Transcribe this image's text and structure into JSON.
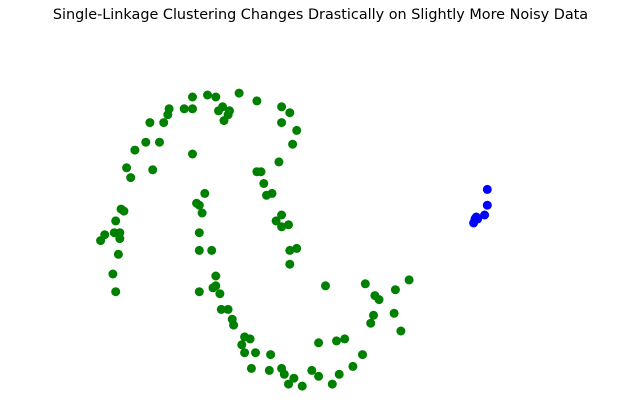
{
  "chart_data": {
    "type": "scatter",
    "title": "Single-Linkage Clustering Changes Drastically on Slightly More Noisy Data",
    "xlabel": "",
    "ylabel": "",
    "axes_visible": false,
    "grid": false,
    "legend": "none",
    "xlim": [
      -1.25,
      2.25
    ],
    "ylim": [
      -0.65,
      1.15
    ],
    "series": [
      {
        "color": "#008000",
        "points": [
          [
            -1.1,
            0.12
          ],
          [
            -1.07,
            0.15
          ],
          [
            -1.0,
            0.16
          ],
          [
            -0.96,
            0.16
          ],
          [
            -0.99,
            0.22
          ],
          [
            -0.93,
            0.27
          ],
          [
            -0.95,
            0.28
          ],
          [
            -0.96,
            0.13
          ],
          [
            -0.97,
            0.05
          ],
          [
            -1.01,
            -0.05
          ],
          [
            -0.99,
            -0.14
          ],
          [
            -0.88,
            0.44
          ],
          [
            -0.91,
            0.49
          ],
          [
            -0.85,
            0.58
          ],
          [
            -0.77,
            0.62
          ],
          [
            -0.74,
            0.72
          ],
          [
            -0.72,
            0.48
          ],
          [
            -0.67,
            0.62
          ],
          [
            -0.64,
            0.72
          ],
          [
            -0.61,
            0.76
          ],
          [
            -0.6,
            0.79
          ],
          [
            -0.49,
            0.79
          ],
          [
            -0.43,
            0.85
          ],
          [
            -0.43,
            0.79
          ],
          [
            -0.32,
            0.86
          ],
          [
            -0.26,
            0.85
          ],
          [
            -0.24,
            0.78
          ],
          [
            -0.2,
            0.73
          ],
          [
            -0.21,
            0.8
          ],
          [
            -0.16,
            0.78
          ],
          [
            -0.17,
            0.76
          ],
          [
            -0.09,
            0.87
          ],
          [
            -0.38,
            0.3
          ],
          [
            -0.4,
            0.31
          ],
          [
            -0.43,
            0.56
          ],
          [
            -0.34,
            0.36
          ],
          [
            -0.36,
            0.26
          ],
          [
            -0.38,
            0.16
          ],
          [
            -0.38,
            0.07
          ],
          [
            -0.29,
            0.07
          ],
          [
            -0.26,
            -0.06
          ],
          [
            -0.28,
            -0.12
          ],
          [
            -0.26,
            -0.11
          ],
          [
            -0.38,
            -0.14
          ],
          [
            -0.23,
            -0.15
          ],
          [
            -0.22,
            -0.23
          ],
          [
            -0.17,
            -0.23
          ],
          [
            -0.14,
            -0.28
          ],
          [
            -0.13,
            -0.31
          ],
          [
            -0.05,
            -0.37
          ],
          [
            -0.05,
            -0.45
          ],
          [
            0.03,
            -0.45
          ],
          [
            -0.01,
            -0.38
          ],
          [
            -0.07,
            -0.41
          ],
          [
            0.0,
            -0.53
          ],
          [
            0.13,
            -0.54
          ],
          [
            0.14,
            -0.46
          ],
          [
            0.22,
            -0.53
          ],
          [
            0.24,
            -0.56
          ],
          [
            0.27,
            -0.61
          ],
          [
            0.31,
            -0.58
          ],
          [
            0.37,
            -0.62
          ],
          [
            0.44,
            -0.54
          ],
          [
            0.49,
            -0.57
          ],
          [
            0.59,
            -0.61
          ],
          [
            0.64,
            -0.56
          ],
          [
            0.74,
            -0.52
          ],
          [
            0.81,
            -0.46
          ],
          [
            0.49,
            -0.4
          ],
          [
            0.62,
            -0.39
          ],
          [
            0.68,
            -0.38
          ],
          [
            0.87,
            -0.3
          ],
          [
            0.9,
            -0.16
          ],
          [
            0.93,
            -0.18
          ],
          [
            0.89,
            -0.26
          ],
          [
            1.04,
            -0.25
          ],
          [
            1.15,
            -0.08
          ],
          [
            1.05,
            -0.13
          ],
          [
            1.09,
            -0.34
          ],
          [
            0.83,
            -0.1
          ],
          [
            0.54,
            -0.11
          ],
          [
            0.28,
            0.0
          ],
          [
            0.28,
            0.07
          ],
          [
            0.33,
            0.08
          ],
          [
            0.22,
            0.19
          ],
          [
            0.27,
            0.2
          ],
          [
            0.18,
            0.22
          ],
          [
            0.22,
            0.25
          ],
          [
            0.11,
            0.35
          ],
          [
            0.15,
            0.36
          ],
          [
            0.09,
            0.41
          ],
          [
            0.04,
            0.47
          ],
          [
            0.07,
            0.47
          ],
          [
            0.2,
            0.52
          ],
          [
            0.3,
            0.61
          ],
          [
            0.28,
            0.77
          ],
          [
            0.33,
            0.68
          ],
          [
            0.22,
            0.72
          ],
          [
            0.22,
            0.8
          ],
          [
            0.04,
            0.83
          ]
        ]
      },
      {
        "color": "#0000ff",
        "points": [
          [
            1.62,
            0.21
          ],
          [
            1.64,
            0.24
          ],
          [
            1.63,
            0.23
          ],
          [
            1.65,
            0.23
          ],
          [
            1.7,
            0.25
          ],
          [
            1.72,
            0.3
          ],
          [
            1.72,
            0.38
          ]
        ]
      }
    ]
  }
}
